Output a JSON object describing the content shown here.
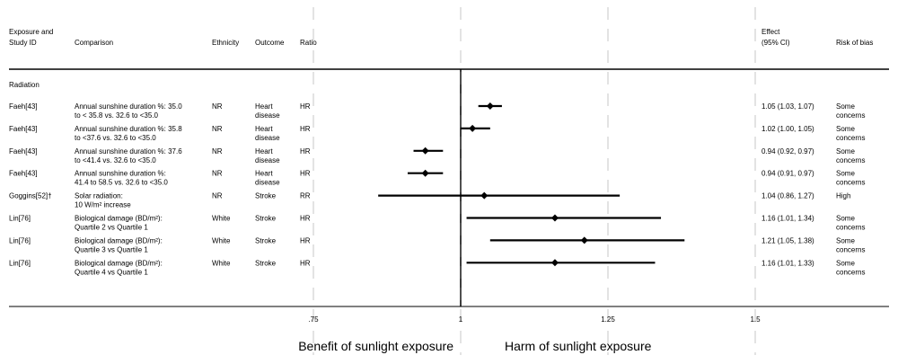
{
  "chart_data": {
    "type": "forest",
    "headers": {
      "study_l1": "Exposure and",
      "study_l2": "Study ID",
      "comparison": "Comparison",
      "ethnicity": "Ethnicity",
      "outcome": "Outcome",
      "ratio": "Ratio",
      "effect_l1": "Effect",
      "effect_l2": "(95% CI)",
      "bias": "Risk of bias"
    },
    "group": "Radiation",
    "xlim": [
      0.75,
      1.5
    ],
    "null_value": 1,
    "ticks": [
      ".75",
      "1",
      "1.25",
      "1.5"
    ],
    "tick_values": [
      0.75,
      1,
      1.25,
      1.5
    ],
    "left_label": "Benefit of sunlight exposure",
    "right_label": "Harm of sunlight exposure",
    "rows": [
      {
        "study": "Faeh[43]",
        "comparison": [
          "Annual sunshine duration %: 35.0",
          "to < 35.8 vs. 32.6 to <35.0"
        ],
        "ethnicity": "NR",
        "outcome": [
          "Heart",
          "disease"
        ],
        "ratio": "HR",
        "est": 1.05,
        "lo": 1.03,
        "hi": 1.07,
        "effect": "1.05 (1.03, 1.07)",
        "bias": [
          "Some",
          "concerns"
        ]
      },
      {
        "study": "Faeh[43]",
        "comparison": [
          "Annual sunshine duration %: 35.8",
          "to <37.6 vs. 32.6 to <35.0"
        ],
        "ethnicity": "NR",
        "outcome": [
          "Heart",
          "disease"
        ],
        "ratio": "HR",
        "est": 1.02,
        "lo": 1.0,
        "hi": 1.05,
        "effect": "1.02 (1.00, 1.05)",
        "bias": [
          "Some",
          "concerns"
        ]
      },
      {
        "study": "Faeh[43]",
        "comparison": [
          "Annual sunshine duration %: 37.6",
          "to <41.4 vs. 32.6 to <35.0"
        ],
        "ethnicity": "NR",
        "outcome": [
          "Heart",
          "disease"
        ],
        "ratio": "HR",
        "est": 0.94,
        "lo": 0.92,
        "hi": 0.97,
        "effect": "0.94 (0.92, 0.97)",
        "bias": [
          "Some",
          "concerns"
        ]
      },
      {
        "study": "Faeh[43]",
        "comparison": [
          "Annual sunshine duration %:",
          "41.4 to 58.5 vs. 32.6 to <35.0"
        ],
        "ethnicity": "NR",
        "outcome": [
          "Heart",
          "disease"
        ],
        "ratio": "HR",
        "est": 0.94,
        "lo": 0.91,
        "hi": 0.97,
        "effect": "0.94 (0.91, 0.97)",
        "bias": [
          "Some",
          "concerns"
        ]
      },
      {
        "study": "Goggins[52]†",
        "comparison": [
          "Solar radiation:",
          "10 W/m² increase"
        ],
        "ethnicity": "NR",
        "outcome": [
          "Stroke",
          ""
        ],
        "ratio": "RR",
        "est": 1.04,
        "lo": 0.86,
        "hi": 1.27,
        "effect": "1.04 (0.86, 1.27)",
        "bias": [
          "High",
          ""
        ]
      },
      {
        "study": "Lin[76]",
        "comparison": [
          "Biological damage (BD/m²):",
          "Quartile 2 vs Quartile 1"
        ],
        "ethnicity": "White",
        "outcome": [
          "Stroke",
          ""
        ],
        "ratio": "HR",
        "est": 1.16,
        "lo": 1.01,
        "hi": 1.34,
        "effect": "1.16 (1.01, 1.34)",
        "bias": [
          "Some",
          "concerns"
        ]
      },
      {
        "study": "Lin[76]",
        "comparison": [
          "Biological damage (BD/m²):",
          "Quartile 3 vs Quartile 1"
        ],
        "ethnicity": "White",
        "outcome": [
          "Stroke",
          ""
        ],
        "ratio": "HR",
        "est": 1.21,
        "lo": 1.05,
        "hi": 1.38,
        "effect": "1.21 (1.05, 1.38)",
        "bias": [
          "Some",
          "concerns"
        ]
      },
      {
        "study": "Lin[76]",
        "comparison": [
          "Biological damage (BD/m²):",
          "Quartile 4 vs Quartile 1"
        ],
        "ethnicity": "White",
        "outcome": [
          "Stroke",
          ""
        ],
        "ratio": "HR",
        "est": 1.16,
        "lo": 1.01,
        "hi": 1.33,
        "effect": "1.16 (1.01, 1.33)",
        "bias": [
          "Some",
          "concerns"
        ]
      }
    ]
  }
}
